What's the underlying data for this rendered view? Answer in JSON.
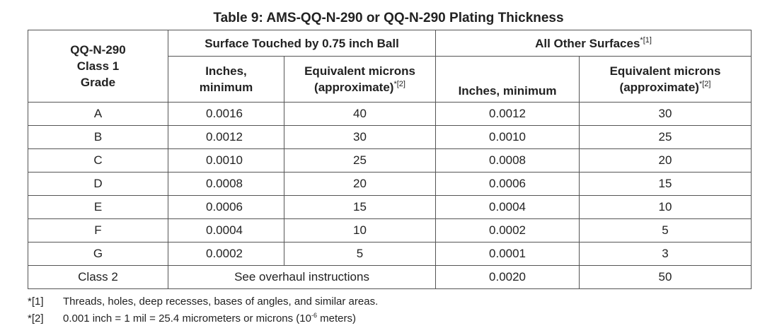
{
  "title": "Table 9:  AMS-QQ-N-290 or QQ-N-290 Plating Thickness",
  "header": {
    "grade_col": [
      "QQ-N-290",
      "Class 1",
      "Grade"
    ],
    "group1": "Surface Touched by 0.75 inch Ball",
    "group2": "All Other Surfaces",
    "group2_ref": "*[1]",
    "g1_inches": [
      "Inches,",
      "minimum"
    ],
    "g1_microns": [
      "Equivalent microns",
      "(approximate)"
    ],
    "g1_microns_ref": "*[2]",
    "g2_inches": "Inches, minimum",
    "g2_microns": [
      "Equivalent microns",
      "(approximate)"
    ],
    "g2_microns_ref": "*[2]"
  },
  "rows": [
    {
      "grade": "A",
      "ball_in": "0.0016",
      "ball_um": "40",
      "other_in": "0.0012",
      "other_um": "30"
    },
    {
      "grade": "B",
      "ball_in": "0.0012",
      "ball_um": "30",
      "other_in": "0.0010",
      "other_um": "25"
    },
    {
      "grade": "C",
      "ball_in": "0.0010",
      "ball_um": "25",
      "other_in": "0.0008",
      "other_um": "20"
    },
    {
      "grade": "D",
      "ball_in": "0.0008",
      "ball_um": "20",
      "other_in": "0.0006",
      "other_um": "15"
    },
    {
      "grade": "E",
      "ball_in": "0.0006",
      "ball_um": "15",
      "other_in": "0.0004",
      "other_um": "10"
    },
    {
      "grade": "F",
      "ball_in": "0.0004",
      "ball_um": "10",
      "other_in": "0.0002",
      "other_um": "5"
    },
    {
      "grade": "G",
      "ball_in": "0.0002",
      "ball_um": "5",
      "other_in": "0.0001",
      "other_um": "3"
    }
  ],
  "class2": {
    "grade": "Class 2",
    "ball": "See overhaul instructions",
    "other_in": "0.0020",
    "other_um": "50"
  },
  "footnotes": [
    {
      "mark": "*[1]",
      "text": "Threads, holes, deep recesses, bases of angles, and similar areas."
    },
    {
      "mark": "*[2]",
      "text_before": "0.001 inch = 1 mil = 25.4 micrometers or microns (10",
      "exp": "-6",
      "text_after": " meters)"
    }
  ]
}
